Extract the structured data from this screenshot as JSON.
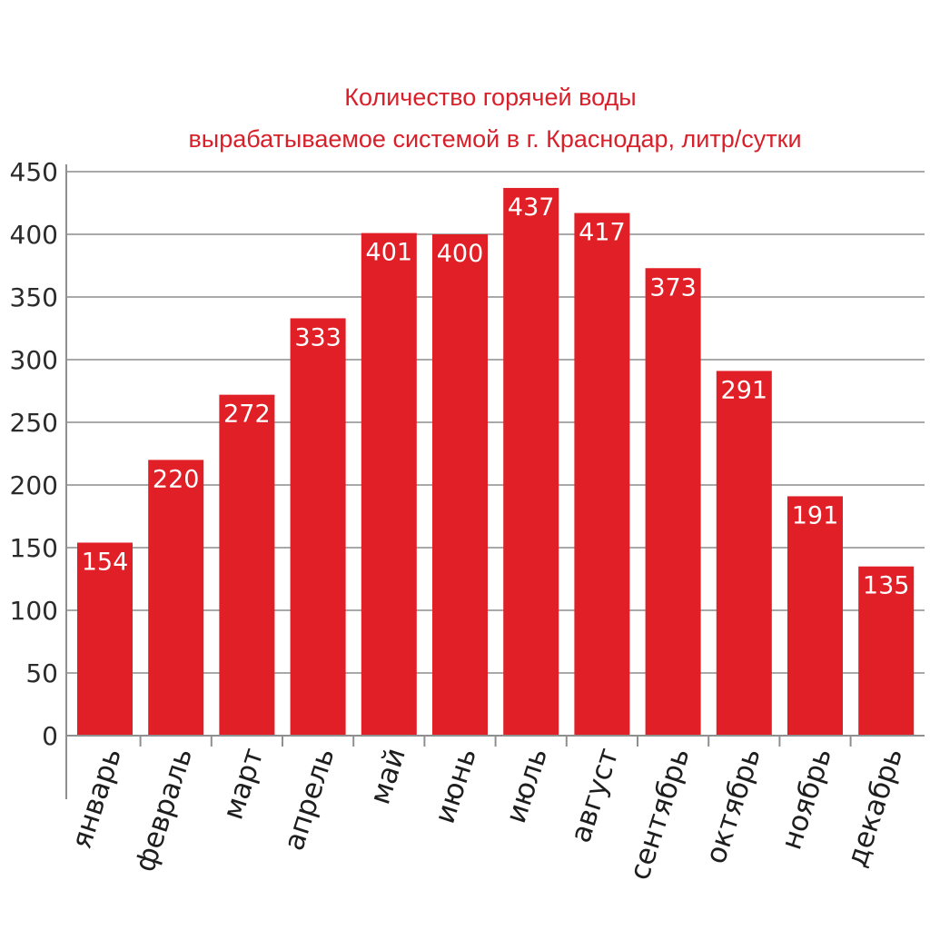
{
  "chart_data": {
    "type": "bar",
    "title_lines": [
      "Количество горячей  воды",
      "вырабатываемое системой в г. Краснодар, литр/сутки"
    ],
    "categories": [
      "январь",
      "февраль",
      "март",
      "апрель",
      "май",
      "июнь",
      "июль",
      "август",
      "сентябрь",
      "октябрь",
      "ноябрь",
      "декабрь"
    ],
    "values": [
      154,
      220,
      272,
      333,
      401,
      400,
      437,
      417,
      373,
      291,
      191,
      135
    ],
    "yticks": [
      "0",
      "50",
      "100",
      "150",
      "200",
      "250",
      "300",
      "350",
      "400",
      "450"
    ],
    "ylim": [
      0,
      450
    ],
    "ystep": 50,
    "grid": true,
    "data_labels": true,
    "legend": "none",
    "colors": {
      "bar": "#e01f26",
      "title": "#d8202b",
      "grid": "#a9a9a9",
      "axis": "#8f8f8f",
      "label_on_bar": "#ffffff",
      "tick_text": "#2b2b2b"
    }
  }
}
